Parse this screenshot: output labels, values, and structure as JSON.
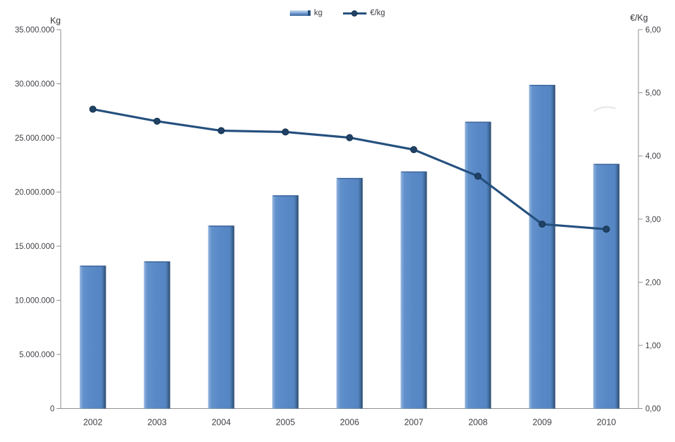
{
  "chart_data": {
    "type": "combo",
    "title": "",
    "categories": [
      "2002",
      "2003",
      "2004",
      "2005",
      "2006",
      "2007",
      "2008",
      "2009",
      "2010"
    ],
    "series": [
      {
        "name": "kg",
        "type": "bar",
        "axis": "left",
        "values": [
          13200000,
          13600000,
          16900000,
          19700000,
          21300000,
          21900000,
          26500000,
          29900000,
          22600000
        ]
      },
      {
        "name": "€/kg",
        "type": "line",
        "axis": "right",
        "values": [
          4.74,
          4.55,
          4.4,
          4.38,
          4.29,
          4.1,
          3.68,
          2.92,
          2.84
        ]
      }
    ],
    "left_axis": {
      "title": "Kg",
      "lim": [
        0,
        35000000
      ],
      "tick_values": [
        35000000,
        30000000,
        25000000,
        20000000,
        15000000,
        10000000,
        5000000,
        0
      ],
      "ticks": [
        "35.000.000",
        "30.000.000",
        "25.000.000",
        "20.000.000",
        "15.000.000",
        "10.000.000",
        "5.000.000",
        "0"
      ]
    },
    "right_axis": {
      "title": "€/Kg",
      "lim": [
        0,
        6
      ],
      "tick_values": [
        6,
        5,
        4,
        3,
        2,
        1,
        0
      ],
      "ticks": [
        "6,00",
        "5,00",
        "4,00",
        "3,00",
        "2,00",
        "1,00",
        "0,00"
      ]
    },
    "legend": {
      "position": "top",
      "entries": [
        "kg",
        "€/kg"
      ]
    },
    "grid": false,
    "colors": {
      "bar": "#5988c6",
      "bar_highlight": "#96b7e0",
      "bar_shadow": "#2b4a6f",
      "line": "#24507e",
      "marker": "#1f4265",
      "axis": "#8e8e8e",
      "text": "#3f3f46"
    }
  }
}
